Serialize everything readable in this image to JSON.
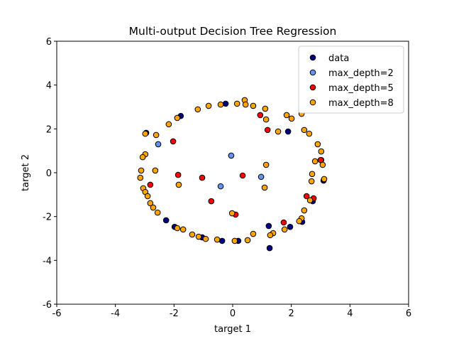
{
  "chart_data": {
    "type": "scatter",
    "title": "Multi-output Decision Tree Regression",
    "x_label": "target 1",
    "y_label": "target 2",
    "xlim": [
      -6,
      6
    ],
    "ylim": [
      -6,
      6
    ],
    "xticks": [
      -6,
      -4,
      -2,
      0,
      2,
      4,
      6
    ],
    "yticks": [
      -6,
      -4,
      -2,
      0,
      2,
      4,
      6
    ],
    "legend": "upper right",
    "series": [
      {
        "name": "data",
        "color": "#000080",
        "x": [
          -1.77,
          -2.95,
          -0.24,
          1.89,
          1.23,
          2.73,
          2.37,
          1.96,
          1.26,
          0.19,
          -0.36,
          -1.04,
          -2.27,
          -1.98,
          3.02,
          3.1
        ],
        "y": [
          2.59,
          1.82,
          3.15,
          1.88,
          -2.43,
          -1.3,
          -2.24,
          -2.47,
          -3.44,
          -3.11,
          -3.11,
          -2.95,
          -2.17,
          -2.47,
          0.58,
          -0.36
        ]
      },
      {
        "name": "max_depth=2",
        "color": "#6495ed",
        "x": [
          -2.54,
          -0.05,
          -0.41,
          0.97
        ],
        "y": [
          1.3,
          0.78,
          -0.62,
          -0.19
        ]
      },
      {
        "name": "max_depth=5",
        "color": "#ff0000",
        "x": [
          -2.03,
          -1.86,
          -2.81,
          -1.04,
          -0.73,
          0.34,
          0.1,
          0.94,
          1.19,
          1.74,
          2.52,
          2.76,
          3.0
        ],
        "y": [
          1.43,
          -0.1,
          -0.55,
          -0.23,
          -1.3,
          -0.13,
          -1.91,
          2.63,
          1.95,
          -2.27,
          -1.07,
          -1.17,
          0.58
        ]
      },
      {
        "name": "max_depth=8",
        "color": "#ffa500",
        "x": [
          -1.19,
          -0.82,
          -0.41,
          0.15,
          0.41,
          0.44,
          0.7,
          1.11,
          1.55,
          1.84,
          2.01,
          2.35,
          2.44,
          2.61,
          2.81,
          2.9,
          3.02,
          3.07,
          3.12,
          2.71,
          2.69,
          2.64,
          2.44,
          2.35,
          2.27,
          1.77,
          1.38,
          1.28,
          0.7,
          0.51,
          0.07,
          -0.02,
          1.09,
          1.14,
          1.14,
          -2.18,
          -2.61,
          -2.98,
          -1.89,
          -1.84,
          -2.64,
          -2.98,
          -3.07,
          -3.12,
          -3.15,
          -3.05,
          -2.98,
          -2.9,
          -2.81,
          -2.71,
          -2.56,
          -1.89,
          -1.69,
          -1.38,
          -1.16,
          -0.92,
          -0.53
        ],
        "y": [
          2.89,
          3.05,
          3.11,
          3.15,
          3.31,
          3.11,
          3.05,
          2.92,
          1.88,
          2.63,
          2.47,
          2.69,
          1.95,
          1.78,
          0.52,
          1.3,
          0.97,
          0.36,
          -0.29,
          -0.06,
          -0.39,
          -1.26,
          -1.72,
          -2.08,
          -2.21,
          -2.59,
          -2.76,
          -2.85,
          -2.79,
          -3.08,
          -3.11,
          -1.85,
          -0.68,
          0.36,
          2.43,
          2.21,
          1.72,
          1.78,
          2.5,
          -0.55,
          0.1,
          0.84,
          0.71,
          0.1,
          -0.23,
          -0.71,
          -0.88,
          -1.07,
          -1.39,
          -1.59,
          -1.82,
          -2.53,
          -2.59,
          -2.82,
          -2.92,
          -3.02,
          -3.05
        ]
      }
    ]
  }
}
